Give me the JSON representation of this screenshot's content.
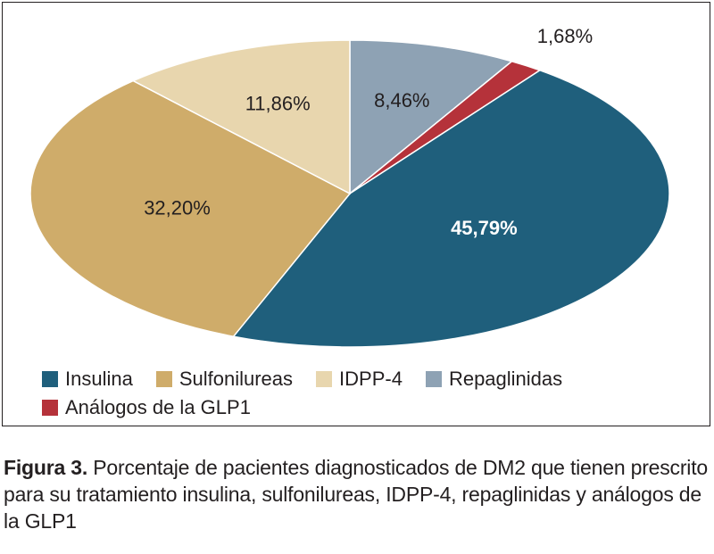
{
  "chart_data": {
    "type": "pie",
    "series": [
      {
        "name": "Insulina",
        "value": 45.79,
        "label": "45,79%",
        "color": "#1f5f7c"
      },
      {
        "name": "Sulfonilureas",
        "value": 32.2,
        "label": "32,20%",
        "color": "#cfac6a"
      },
      {
        "name": "IDPP-4",
        "value": 11.86,
        "label": "11,86%",
        "color": "#e8d6ae"
      },
      {
        "name": "Repaglinidas",
        "value": 8.46,
        "label": "8,46%",
        "color": "#8ea2b4"
      },
      {
        "name": "Análogos de la GLP1",
        "value": 1.68,
        "label": "1,68%",
        "color": "#b5323a"
      }
    ],
    "legend_position": "bottom"
  },
  "caption": {
    "label": "Figura 3.",
    "text": " Porcentaje de pacientes diagnosticados de DM2 que tienen prescrito para su tratamiento insulina, sulfonilureas, IDPP-4, repaglinidas y análogos de la GLP1"
  }
}
